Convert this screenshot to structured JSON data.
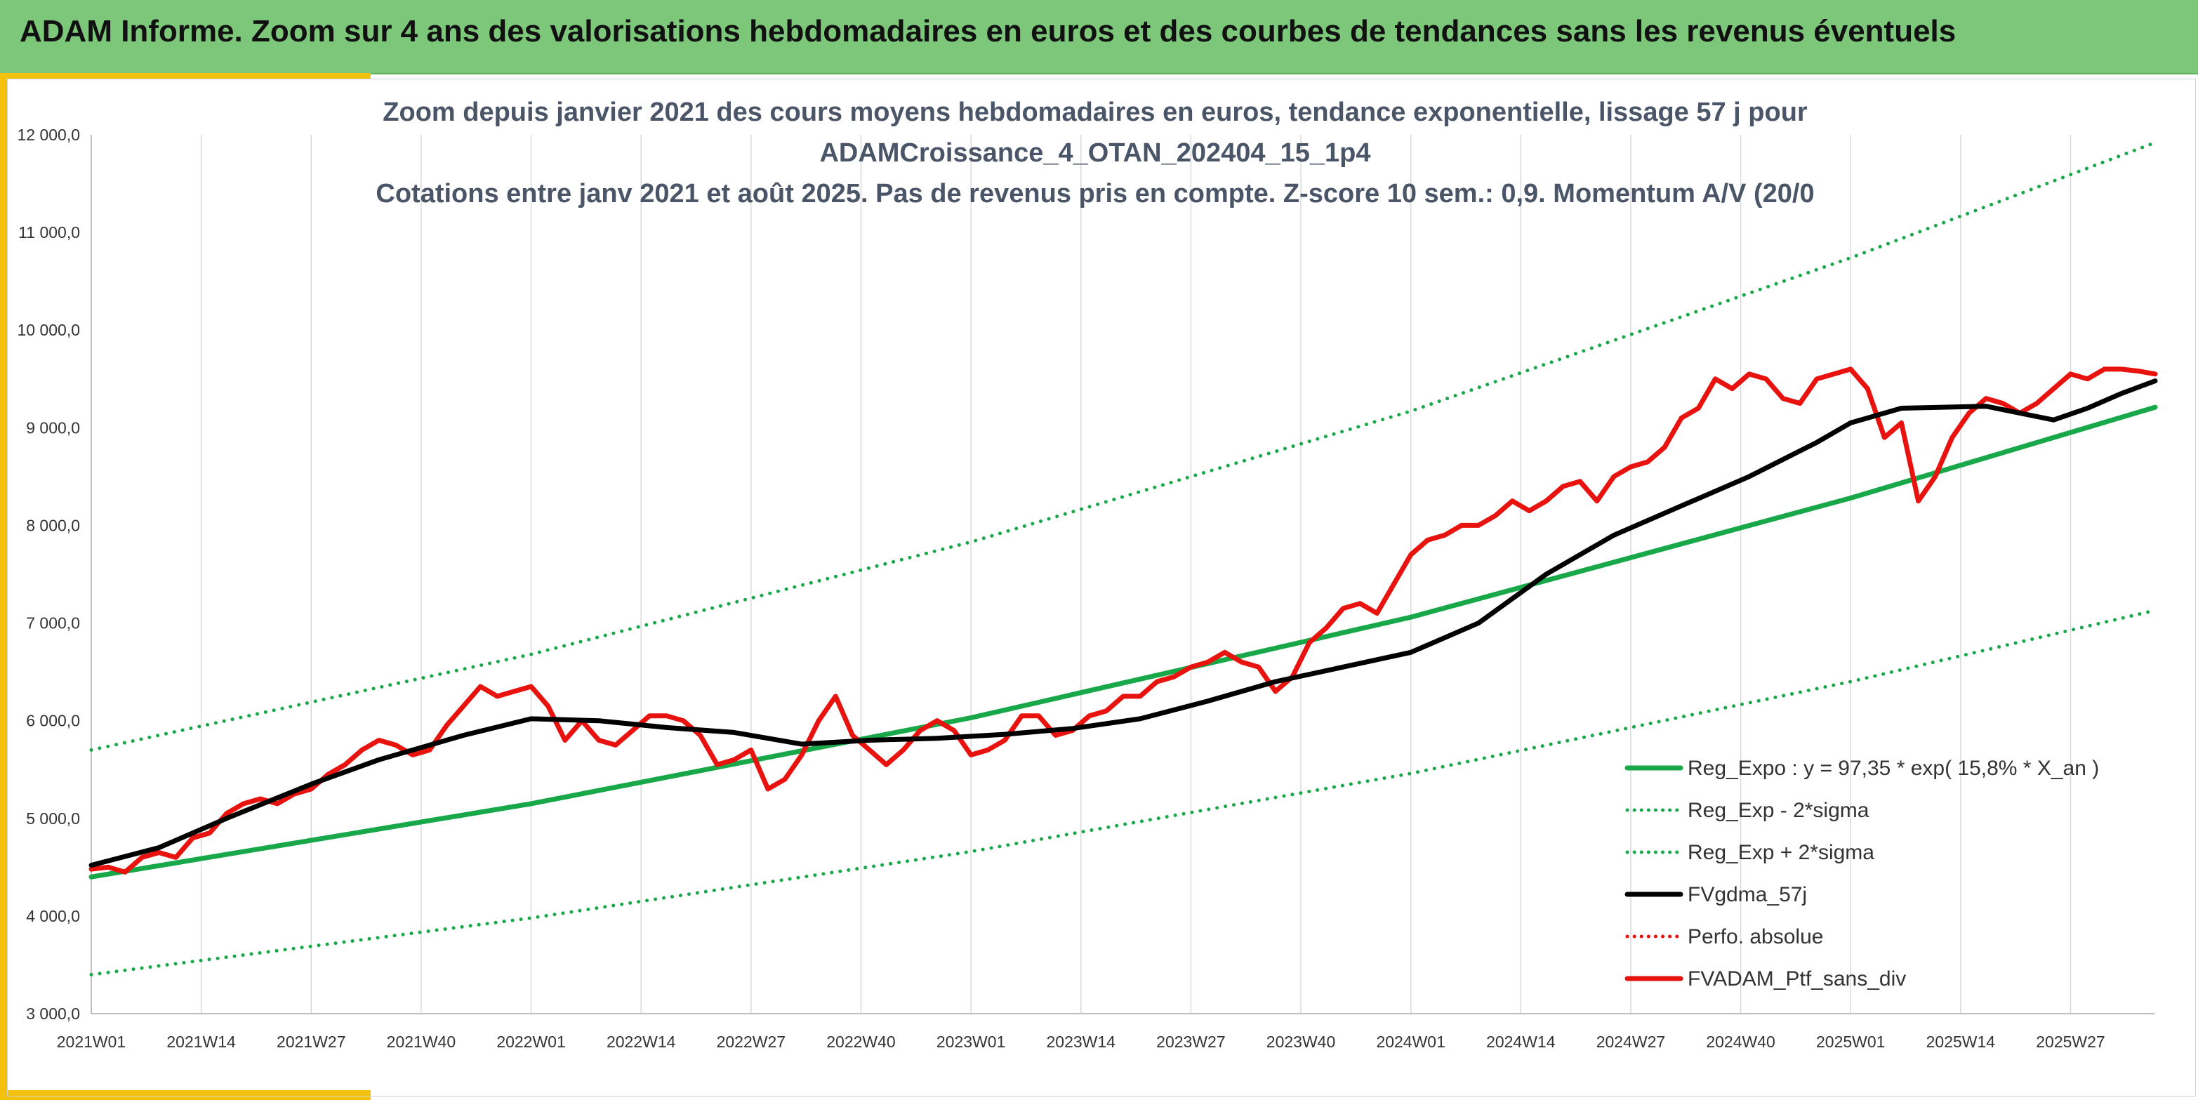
{
  "banner": {
    "title": "ADAM Informe. Zoom sur 4 ans des valorisations hebdomadaires en euros et des courbes de tendances sans les revenus éventuels"
  },
  "colors": {
    "banner": "#7cc77a",
    "accent_yellow": "#f4c20d",
    "trend_green": "#18a84a",
    "smooth_black": "#000000",
    "series_red": "#e8130e"
  },
  "chart_data": {
    "type": "line",
    "title_lines": [
      "Zoom depuis janvier 2021 des cours moyens hebdomadaires en euros, tendance exponentielle, lissage 57 j pour",
      "ADAMCroissance_4_OTAN_202404_15_1p4",
      "Cotations entre janv 2021 et août 2025. Pas de revenus pris en compte. Z-score 10 sem.: 0,9. Momentum A/V (20/0"
    ],
    "x_ticks": [
      "2021W01",
      "2021W14",
      "2021W27",
      "2021W40",
      "2022W01",
      "2022W14",
      "2022W27",
      "2022W40",
      "2023W01",
      "2023W14",
      "2023W27",
      "2023W40",
      "2024W01",
      "2024W14",
      "2024W27",
      "2024W40",
      "2025W01",
      "2025W14",
      "2025W27"
    ],
    "y_ticks": [
      "3 000,0",
      "4 000,0",
      "5 000,0",
      "6 000,0",
      "7 000,0",
      "8 000,0",
      "9 000,0",
      "10 000,0",
      "11 000,0",
      "12 000,0"
    ],
    "ylim": [
      3000,
      12000
    ],
    "week_count": 244,
    "grid": "vertical",
    "legend_position": "bottom-right",
    "series": [
      {
        "name": "Reg_Expo : y = 97,35 * exp( 15,8% *  X_an )",
        "style": "solid",
        "color": "#18a84a",
        "points": [
          [
            0,
            4400
          ],
          [
            52,
            5150
          ],
          [
            104,
            6030
          ],
          [
            156,
            7060
          ],
          [
            208,
            8280
          ],
          [
            244,
            9210
          ]
        ]
      },
      {
        "name": "Reg_Exp - 2*sigma",
        "style": "dotted",
        "color": "#18a84a",
        "points": [
          [
            0,
            3400
          ],
          [
            52,
            3980
          ],
          [
            104,
            4660
          ],
          [
            156,
            5460
          ],
          [
            208,
            6400
          ],
          [
            244,
            7130
          ]
        ]
      },
      {
        "name": "Reg_Exp + 2*sigma",
        "style": "dotted",
        "color": "#18a84a",
        "points": [
          [
            0,
            5700
          ],
          [
            52,
            6680
          ],
          [
            104,
            7830
          ],
          [
            156,
            9170
          ],
          [
            208,
            10740
          ],
          [
            244,
            11920
          ]
        ]
      },
      {
        "name": "FVgdma_57j",
        "style": "solid",
        "color": "#000000",
        "points": [
          [
            0,
            4520
          ],
          [
            8,
            4700
          ],
          [
            16,
            5000
          ],
          [
            26,
            5350
          ],
          [
            34,
            5600
          ],
          [
            44,
            5850
          ],
          [
            52,
            6020
          ],
          [
            60,
            6000
          ],
          [
            68,
            5930
          ],
          [
            76,
            5880
          ],
          [
            84,
            5760
          ],
          [
            92,
            5800
          ],
          [
            100,
            5820
          ],
          [
            108,
            5860
          ],
          [
            116,
            5920
          ],
          [
            124,
            6020
          ],
          [
            132,
            6200
          ],
          [
            140,
            6400
          ],
          [
            148,
            6550
          ],
          [
            156,
            6700
          ],
          [
            164,
            7000
          ],
          [
            172,
            7500
          ],
          [
            180,
            7900
          ],
          [
            188,
            8200
          ],
          [
            196,
            8500
          ],
          [
            204,
            8850
          ],
          [
            208,
            9050
          ],
          [
            214,
            9200
          ],
          [
            224,
            9220
          ],
          [
            228,
            9150
          ],
          [
            232,
            9080
          ],
          [
            236,
            9200
          ],
          [
            240,
            9350
          ],
          [
            244,
            9480
          ]
        ]
      },
      {
        "name": "Perfo. absolue",
        "style": "dotted",
        "color": "#e8130e",
        "points": []
      },
      {
        "name": "FVADAM_Ptf_sans_div",
        "style": "solid",
        "color": "#e8130e",
        "points": [
          [
            0,
            4480
          ],
          [
            2,
            4500
          ],
          [
            4,
            4450
          ],
          [
            6,
            4600
          ],
          [
            8,
            4650
          ],
          [
            10,
            4600
          ],
          [
            12,
            4800
          ],
          [
            14,
            4850
          ],
          [
            16,
            5050
          ],
          [
            18,
            5150
          ],
          [
            20,
            5200
          ],
          [
            22,
            5150
          ],
          [
            24,
            5250
          ],
          [
            26,
            5300
          ],
          [
            28,
            5450
          ],
          [
            30,
            5550
          ],
          [
            32,
            5700
          ],
          [
            34,
            5800
          ],
          [
            36,
            5750
          ],
          [
            38,
            5650
          ],
          [
            40,
            5700
          ],
          [
            42,
            5950
          ],
          [
            44,
            6150
          ],
          [
            46,
            6350
          ],
          [
            48,
            6250
          ],
          [
            50,
            6300
          ],
          [
            52,
            6350
          ],
          [
            54,
            6150
          ],
          [
            56,
            5800
          ],
          [
            58,
            6000
          ],
          [
            60,
            5800
          ],
          [
            62,
            5750
          ],
          [
            64,
            5900
          ],
          [
            66,
            6050
          ],
          [
            68,
            6050
          ],
          [
            70,
            6000
          ],
          [
            72,
            5850
          ],
          [
            74,
            5550
          ],
          [
            76,
            5600
          ],
          [
            78,
            5700
          ],
          [
            80,
            5300
          ],
          [
            82,
            5400
          ],
          [
            84,
            5650
          ],
          [
            86,
            6000
          ],
          [
            88,
            6250
          ],
          [
            90,
            5850
          ],
          [
            92,
            5700
          ],
          [
            94,
            5550
          ],
          [
            96,
            5700
          ],
          [
            98,
            5900
          ],
          [
            100,
            6000
          ],
          [
            102,
            5900
          ],
          [
            104,
            5650
          ],
          [
            106,
            5700
          ],
          [
            108,
            5800
          ],
          [
            110,
            6050
          ],
          [
            112,
            6050
          ],
          [
            114,
            5850
          ],
          [
            116,
            5900
          ],
          [
            118,
            6050
          ],
          [
            120,
            6100
          ],
          [
            122,
            6250
          ],
          [
            124,
            6250
          ],
          [
            126,
            6400
          ],
          [
            128,
            6450
          ],
          [
            130,
            6550
          ],
          [
            132,
            6600
          ],
          [
            134,
            6700
          ],
          [
            136,
            6600
          ],
          [
            138,
            6550
          ],
          [
            140,
            6300
          ],
          [
            142,
            6450
          ],
          [
            144,
            6800
          ],
          [
            146,
            6950
          ],
          [
            148,
            7150
          ],
          [
            150,
            7200
          ],
          [
            152,
            7100
          ],
          [
            154,
            7400
          ],
          [
            156,
            7700
          ],
          [
            158,
            7850
          ],
          [
            160,
            7900
          ],
          [
            162,
            8000
          ],
          [
            164,
            8000
          ],
          [
            166,
            8100
          ],
          [
            168,
            8250
          ],
          [
            170,
            8150
          ],
          [
            172,
            8250
          ],
          [
            174,
            8400
          ],
          [
            176,
            8450
          ],
          [
            178,
            8250
          ],
          [
            180,
            8500
          ],
          [
            182,
            8600
          ],
          [
            184,
            8650
          ],
          [
            186,
            8800
          ],
          [
            188,
            9100
          ],
          [
            190,
            9200
          ],
          [
            192,
            9500
          ],
          [
            194,
            9400
          ],
          [
            196,
            9550
          ],
          [
            198,
            9500
          ],
          [
            200,
            9300
          ],
          [
            202,
            9250
          ],
          [
            204,
            9500
          ],
          [
            206,
            9550
          ],
          [
            208,
            9600
          ],
          [
            210,
            9400
          ],
          [
            212,
            8900
          ],
          [
            214,
            9050
          ],
          [
            216,
            8250
          ],
          [
            218,
            8500
          ],
          [
            220,
            8900
          ],
          [
            222,
            9150
          ],
          [
            224,
            9300
          ],
          [
            226,
            9250
          ],
          [
            228,
            9150
          ],
          [
            230,
            9250
          ],
          [
            232,
            9400
          ],
          [
            234,
            9550
          ],
          [
            236,
            9500
          ],
          [
            238,
            9600
          ],
          [
            240,
            9600
          ],
          [
            242,
            9580
          ],
          [
            244,
            9550
          ]
        ]
      }
    ]
  }
}
